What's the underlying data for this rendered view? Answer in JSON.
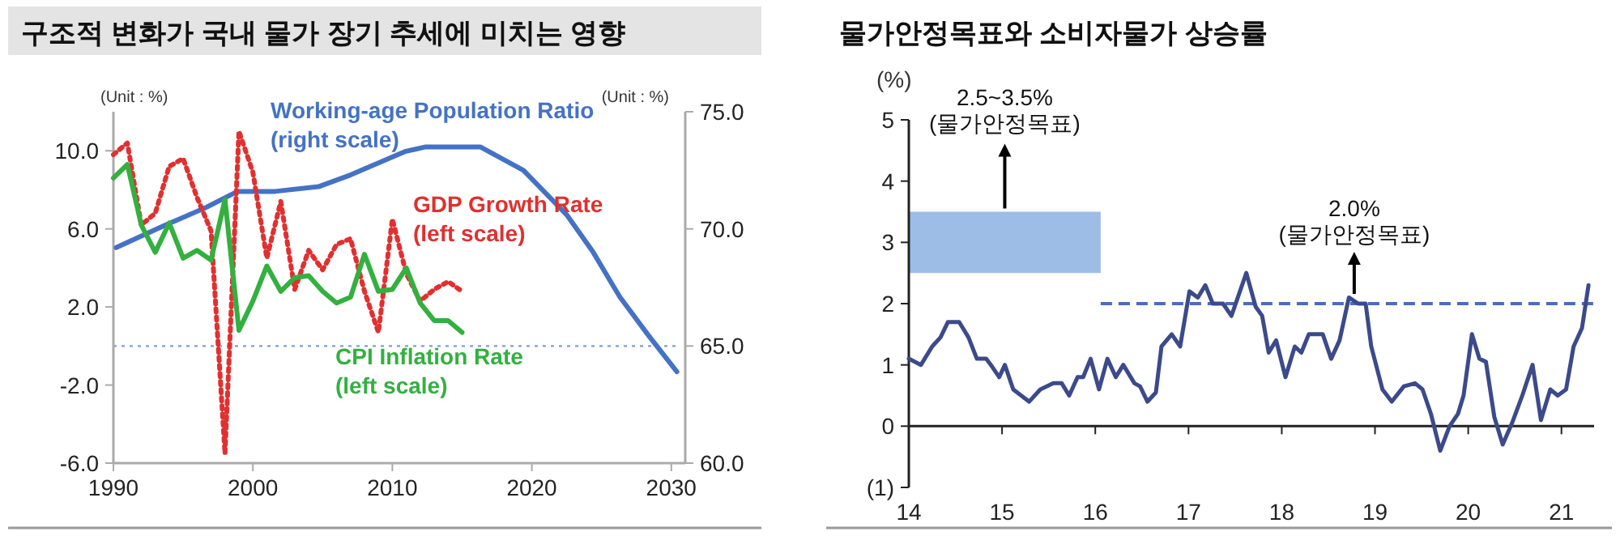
{
  "chart_data": [
    {
      "type": "line",
      "title": "구조적 변화가 국내 물가 장기 추세에 미치는 영향",
      "ylabel": "(Unit : %)",
      "y2label": "(Unit : %)",
      "xlim": [
        1990,
        2031
      ],
      "xticks": [
        1990,
        2000,
        2010,
        2020,
        2030
      ],
      "ylim": [
        -6,
        12
      ],
      "yticks": [
        {
          "value": -6,
          "label": "-6.0"
        },
        {
          "value": -2,
          "label": "-2.0"
        },
        {
          "value": 2,
          "label": "2.0"
        },
        {
          "value": 6,
          "label": "6.0"
        },
        {
          "value": 10,
          "label": "10.0"
        }
      ],
      "y2lim": [
        60,
        75
      ],
      "y2ticks": [
        {
          "value": 60,
          "label": "60.0"
        },
        {
          "value": 65,
          "label": "65.0"
        },
        {
          "value": 70,
          "label": "70.0"
        },
        {
          "value": 75,
          "label": "75.0"
        }
      ],
      "series": [
        {
          "name": "Working-age Population Ratio (right scale)",
          "color": "#4472c4",
          "axis": "y2",
          "x": [
            1990.2,
            1993.5,
            1996.6,
            1998.9,
            2001.6,
            2004.7,
            2007,
            2010.9,
            2012.4,
            2016.3,
            2019.4,
            2022.5,
            2024.4,
            2026.3,
            2028.3,
            2030.4
          ],
          "values": [
            69.2,
            70.1,
            70.9,
            71.6,
            71.6,
            71.8,
            72.3,
            73.3,
            73.5,
            73.5,
            72.5,
            70.6,
            69.0,
            67.1,
            65.5,
            63.9
          ]
        },
        {
          "name": "GDP Growth Rate (left scale)",
          "color": "#e03030",
          "line_style": "dotted",
          "x": [
            1990,
            1991,
            1992,
            1993,
            1994,
            1995,
            1996,
            1997,
            1998,
            1999,
            2000,
            2001,
            2002,
            2003,
            2004,
            2005,
            2006,
            2007,
            2008,
            2009,
            2010,
            2011,
            2012,
            2013,
            2014,
            2015
          ],
          "values": [
            9.8,
            10.4,
            6.2,
            6.8,
            9.2,
            9.6,
            7.6,
            5.9,
            -5.5,
            11.0,
            8.9,
            4.5,
            7.4,
            2.9,
            4.9,
            3.9,
            5.2,
            5.5,
            2.8,
            0.7,
            6.5,
            3.7,
            2.3,
            2.9,
            3.3,
            2.8
          ]
        },
        {
          "name": "CPI Inflation Rate (left scale)",
          "color": "#33b040",
          "x": [
            1990,
            1991,
            1992,
            1993,
            1994,
            1995,
            1996,
            1997,
            1998,
            1999,
            2000,
            2001,
            2002,
            2003,
            2004,
            2005,
            2006,
            2007,
            2008,
            2009,
            2010,
            2011,
            2012,
            2013,
            2014,
            2015
          ],
          "values": [
            8.6,
            9.3,
            6.2,
            4.8,
            6.3,
            4.5,
            4.9,
            4.4,
            7.5,
            0.8,
            2.3,
            4.1,
            2.8,
            3.5,
            3.6,
            2.8,
            2.2,
            2.5,
            4.7,
            2.8,
            2.9,
            4.0,
            2.2,
            1.3,
            1.3,
            0.7
          ]
        }
      ],
      "ref_lines": [
        {
          "axis": "y2",
          "value": 65,
          "color": "#7f9fcf",
          "line_style": "dotted"
        }
      ]
    },
    {
      "type": "line",
      "title": "물가안정목표와 소비자물가 상승률",
      "ylabel": "(%)",
      "xlim": [
        2014,
        2021.35
      ],
      "xticks": [
        {
          "value": 2014,
          "label": "14"
        },
        {
          "value": 2015,
          "label": "15"
        },
        {
          "value": 2016,
          "label": "16"
        },
        {
          "value": 2017,
          "label": "17"
        },
        {
          "value": 2018,
          "label": "18"
        },
        {
          "value": 2019,
          "label": "19"
        },
        {
          "value": 2020,
          "label": "20"
        },
        {
          "value": 2021,
          "label": "21"
        }
      ],
      "ylim": [
        -1,
        5
      ],
      "yticks": [
        {
          "value": -1,
          "label": "(1)"
        },
        0,
        1,
        2,
        3,
        4,
        5
      ],
      "series": [
        {
          "color": "#3b4a8a",
          "x": [
            2014.0,
            2014.13,
            2014.25,
            2014.34,
            2014.42,
            2014.54,
            2014.64,
            2014.73,
            2014.83,
            2014.88,
            2014.97,
            2015.03,
            2015.12,
            2015.29,
            2015.41,
            2015.55,
            2015.64,
            2015.72,
            2015.81,
            2015.87,
            2015.95,
            2016.04,
            2016.13,
            2016.22,
            2016.3,
            2016.42,
            2016.48,
            2016.56,
            2016.65,
            2016.71,
            2016.82,
            2016.91,
            2017.01,
            2017.1,
            2017.18,
            2017.26,
            2017.37,
            2017.46,
            2017.62,
            2017.72,
            2017.79,
            2017.86,
            2017.94,
            2018.04,
            2018.14,
            2018.21,
            2018.29,
            2018.44,
            2018.53,
            2018.62,
            2018.72,
            2018.82,
            2018.9,
            2018.96,
            2019.08,
            2019.18,
            2019.31,
            2019.43,
            2019.51,
            2019.6,
            2019.7,
            2019.8,
            2019.89,
            2019.95,
            2020.04,
            2020.12,
            2020.19,
            2020.28,
            2020.37,
            2020.47,
            2020.58,
            2020.69,
            2020.78,
            2020.88,
            2020.96,
            2021.05,
            2021.13,
            2021.22,
            2021.29
          ],
          "values": [
            1.1,
            1.0,
            1.3,
            1.45,
            1.7,
            1.7,
            1.45,
            1.1,
            1.1,
            1.0,
            0.8,
            1.0,
            0.6,
            0.4,
            0.6,
            0.7,
            0.7,
            0.5,
            0.8,
            0.8,
            1.1,
            0.6,
            1.1,
            0.8,
            1.0,
            0.7,
            0.65,
            0.4,
            0.55,
            1.3,
            1.5,
            1.3,
            2.2,
            2.1,
            2.3,
            2.0,
            2.0,
            1.8,
            2.5,
            1.95,
            1.8,
            1.2,
            1.4,
            0.8,
            1.3,
            1.2,
            1.5,
            1.5,
            1.1,
            1.4,
            2.1,
            2.0,
            2.0,
            1.3,
            0.6,
            0.4,
            0.65,
            0.7,
            0.6,
            0.2,
            -0.4,
            0.0,
            0.2,
            0.5,
            1.5,
            1.1,
            1.05,
            0.15,
            -0.3,
            0.05,
            0.5,
            1.0,
            0.1,
            0.6,
            0.5,
            0.6,
            1.3,
            1.6,
            2.3
          ]
        }
      ],
      "bands": [
        {
          "axis": "y",
          "from": 2.5,
          "to": 3.5,
          "label": "2.5~3.5% (물가안정목표)",
          "color": "#9dbde6"
        }
      ],
      "ref_lines": [
        {
          "axis": "y",
          "value": 2.0,
          "label": "2.0% (물가안정목표)",
          "color": "#4a6cc0",
          "line_style": "dashed"
        }
      ]
    }
  ]
}
